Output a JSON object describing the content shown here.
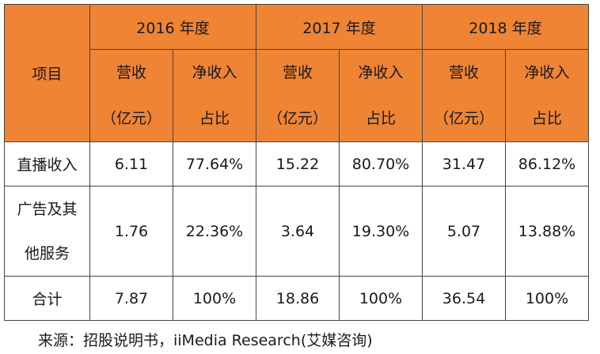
{
  "table": {
    "item_header": "项目",
    "years": [
      "2016 年度",
      "2017 年度",
      "2018 年度"
    ],
    "sub_headers": {
      "revenue_line1": "营收",
      "revenue_line2": "（亿元）",
      "share_line1": "净收入",
      "share_line2": "占比"
    },
    "rows": [
      {
        "label_lines": [
          "直播收入"
        ],
        "values": [
          "6.11",
          "77.64%",
          "15.22",
          "80.70%",
          "31.47",
          "86.12%"
        ]
      },
      {
        "label_lines": [
          "广告及其",
          "他服务"
        ],
        "values": [
          "1.76",
          "22.36%",
          "3.64",
          "19.30%",
          "5.07",
          "13.88%"
        ]
      },
      {
        "label_lines": [
          "合计"
        ],
        "values": [
          "7.87",
          "100%",
          "18.86",
          "100%",
          "36.54",
          "100%"
        ]
      }
    ]
  },
  "source_note": "来源：招股说明书，iiMedia Research(艾媒咨询)",
  "colors": {
    "header_bg": "#ee8434",
    "border": "#444444",
    "text": "#1a1a1a"
  }
}
